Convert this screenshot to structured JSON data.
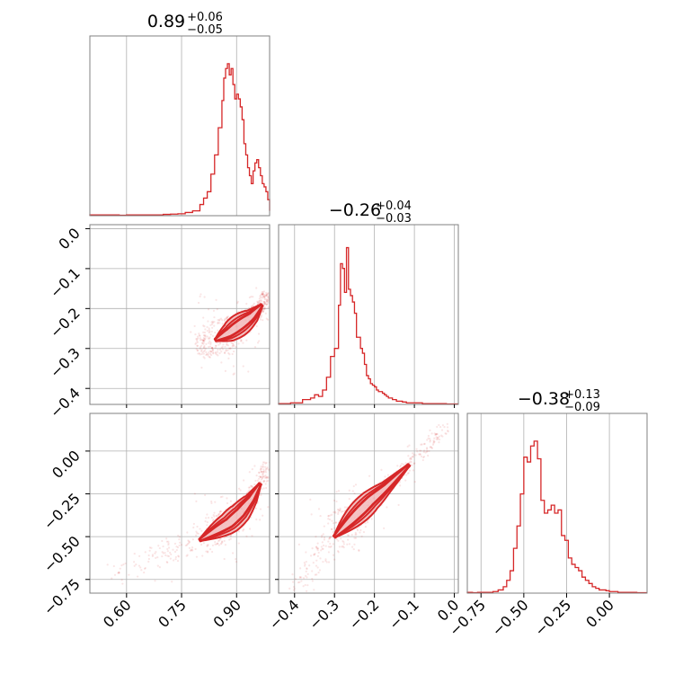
{
  "colors": {
    "accent": "#d62728",
    "fill_light": "#f2b8ba",
    "grid": "#b0b0b0"
  },
  "chart_data": {
    "type": "corner",
    "params": [
      {
        "key": "p1",
        "value": "0.89",
        "plus": "+0.06",
        "minus": "−0.05",
        "range": [
          0.5,
          0.99
        ],
        "ticks": [
          0.6,
          0.75,
          0.9
        ],
        "tick_labels": [
          "0.60",
          "0.75",
          "0.90"
        ],
        "hist": {
          "x": [
            0.5,
            0.52,
            0.54,
            0.56,
            0.58,
            0.6,
            0.62,
            0.64,
            0.66,
            0.68,
            0.7,
            0.72,
            0.74,
            0.76,
            0.78,
            0.8,
            0.81,
            0.82,
            0.83,
            0.84,
            0.85,
            0.86,
            0.865,
            0.87,
            0.875,
            0.88,
            0.885,
            0.89,
            0.895,
            0.9,
            0.905,
            0.91,
            0.915,
            0.92,
            0.925,
            0.93,
            0.935,
            0.94,
            0.945,
            0.95,
            0.955,
            0.96,
            0.965,
            0.97,
            0.975,
            0.98,
            0.985,
            0.99
          ],
          "h": [
            0.005,
            0.005,
            0.005,
            0.005,
            0.003,
            0.005,
            0.005,
            0.005,
            0.005,
            0.005,
            0.008,
            0.01,
            0.012,
            0.02,
            0.03,
            0.07,
            0.11,
            0.15,
            0.26,
            0.38,
            0.55,
            0.72,
            0.86,
            0.92,
            0.95,
            0.88,
            0.92,
            0.82,
            0.73,
            0.76,
            0.73,
            0.68,
            0.6,
            0.45,
            0.38,
            0.3,
            0.25,
            0.2,
            0.28,
            0.33,
            0.35,
            0.3,
            0.25,
            0.2,
            0.18,
            0.15,
            0.1,
            0.03
          ]
        },
        "hist_max": 1.0
      },
      {
        "key": "p2",
        "value": "−0.26",
        "plus": "+0.04",
        "minus": "−0.03",
        "range": [
          -0.44,
          0.01
        ],
        "ticks": [
          -0.4,
          -0.3,
          -0.2,
          -0.1,
          0.0
        ],
        "tick_labels": [
          "−0.4",
          "−0.3",
          "−0.2",
          "−0.1",
          "0.0"
        ],
        "hist": {
          "x": [
            -0.44,
            -0.43,
            -0.42,
            -0.41,
            -0.4,
            -0.39,
            -0.38,
            -0.37,
            -0.36,
            -0.35,
            -0.34,
            -0.33,
            -0.32,
            -0.31,
            -0.3,
            -0.29,
            -0.285,
            -0.28,
            -0.275,
            -0.27,
            -0.265,
            -0.26,
            -0.255,
            -0.25,
            -0.245,
            -0.24,
            -0.235,
            -0.23,
            -0.225,
            -0.22,
            -0.215,
            -0.21,
            -0.205,
            -0.2,
            -0.195,
            -0.19,
            -0.185,
            -0.18,
            -0.175,
            -0.17,
            -0.165,
            -0.16,
            -0.155,
            -0.15,
            -0.145,
            -0.14,
            -0.13,
            -0.12,
            -0.11,
            -0.1,
            -0.08,
            -0.06,
            -0.04,
            -0.02,
            0.0
          ],
          "h": [
            0.005,
            0.005,
            0.005,
            0.01,
            0.01,
            0.01,
            0.03,
            0.03,
            0.04,
            0.06,
            0.05,
            0.09,
            0.17,
            0.3,
            0.35,
            0.62,
            0.88,
            0.85,
            0.7,
            0.98,
            0.72,
            0.68,
            0.64,
            0.57,
            0.42,
            0.42,
            0.35,
            0.32,
            0.25,
            0.18,
            0.16,
            0.13,
            0.12,
            0.11,
            0.09,
            0.08,
            0.08,
            0.07,
            0.06,
            0.05,
            0.04,
            0.04,
            0.03,
            0.03,
            0.02,
            0.02,
            0.015,
            0.01,
            0.01,
            0.01,
            0.005,
            0.005,
            0.005,
            0.003,
            0.003
          ]
        },
        "hist_max": 1.0
      },
      {
        "key": "p3",
        "value": "−0.38",
        "plus": "+0.13",
        "minus": "−0.09",
        "range": [
          -0.83,
          0.22
        ],
        "ticks": [
          -0.75,
          -0.5,
          -0.25,
          0.0
        ],
        "tick_labels": [
          "−0.75",
          "−0.50",
          "−0.25",
          "0.00"
        ],
        "y_ticks": [
          -0.75,
          -0.5,
          -0.25,
          0.0
        ],
        "y_tick_labels": [
          "−0.75",
          "−0.50",
          "−0.25",
          "0.00"
        ],
        "hist": {
          "x": [
            -0.83,
            -0.8,
            -0.77,
            -0.74,
            -0.71,
            -0.68,
            -0.65,
            -0.62,
            -0.6,
            -0.58,
            -0.56,
            -0.54,
            -0.52,
            -0.5,
            -0.48,
            -0.46,
            -0.44,
            -0.42,
            -0.4,
            -0.38,
            -0.36,
            -0.34,
            -0.32,
            -0.3,
            -0.28,
            -0.26,
            -0.24,
            -0.22,
            -0.2,
            -0.18,
            -0.16,
            -0.14,
            -0.12,
            -0.1,
            -0.08,
            -0.06,
            -0.04,
            -0.02,
            0.0,
            0.02,
            0.05,
            0.08,
            0.12,
            0.16,
            0.2
          ],
          "h": [
            0.005,
            0.003,
            0.005,
            0.005,
            0.005,
            0.01,
            0.02,
            0.04,
            0.08,
            0.14,
            0.28,
            0.42,
            0.62,
            0.85,
            0.82,
            0.92,
            0.95,
            0.84,
            0.58,
            0.5,
            0.52,
            0.55,
            0.5,
            0.52,
            0.36,
            0.33,
            0.22,
            0.18,
            0.16,
            0.14,
            0.1,
            0.08,
            0.06,
            0.04,
            0.03,
            0.02,
            0.02,
            0.015,
            0.01,
            0.01,
            0.005,
            0.005,
            0.005,
            0.003,
            0.003
          ]
        },
        "hist_max": 1.0
      }
    ],
    "p2_axis_ticks": [
      0.0,
      -0.1,
      -0.2,
      -0.3,
      -0.4
    ],
    "p2_axis_labels": [
      "0.0",
      "−0.1",
      "−0.2",
      "−0.3",
      "−0.4"
    ],
    "pairs": [
      {
        "x": "p1",
        "y": "p2",
        "ridge": {
          "x": [
            0.79,
            0.82,
            0.85,
            0.88,
            0.91,
            0.94,
            0.97,
            0.985
          ],
          "y": [
            -0.3,
            -0.29,
            -0.275,
            -0.26,
            -0.24,
            -0.22,
            -0.19,
            -0.16
          ]
        }
      },
      {
        "x": "p1",
        "y": "p3",
        "ridge": {
          "x": [
            0.55,
            0.7,
            0.8,
            0.84,
            0.88,
            0.91,
            0.94,
            0.97,
            0.985
          ],
          "y": [
            -0.75,
            -0.6,
            -0.52,
            -0.47,
            -0.42,
            -0.36,
            -0.28,
            -0.17,
            -0.06
          ]
        }
      },
      {
        "x": "p2",
        "y": "p3",
        "ridge": {
          "x": [
            -0.4,
            -0.34,
            -0.3,
            -0.27,
            -0.24,
            -0.21,
            -0.17,
            -0.1,
            -0.02
          ],
          "y": [
            -0.85,
            -0.62,
            -0.5,
            -0.43,
            -0.36,
            -0.29,
            -0.21,
            -0.05,
            0.15
          ]
        }
      }
    ]
  }
}
